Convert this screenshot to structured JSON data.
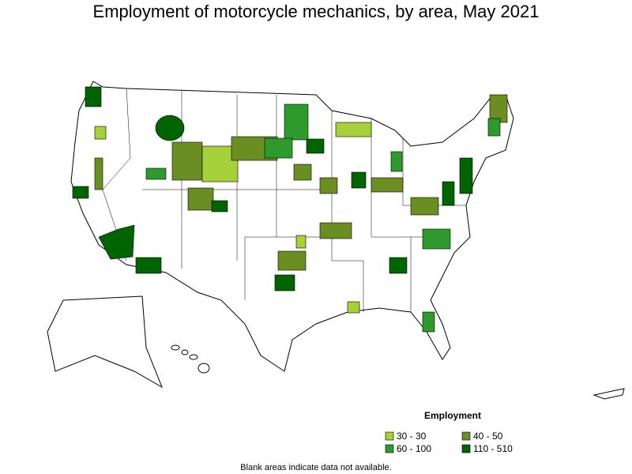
{
  "title": "Employment of motorcycle mechanics, by area, May 2021",
  "legend": {
    "title": "Employment",
    "items": [
      {
        "label": "30 - 30",
        "color": "#a6d13a"
      },
      {
        "label": "40 - 50",
        "color": "#6b8e23"
      },
      {
        "label": "60 - 100",
        "color": "#2e9a2e"
      },
      {
        "label": "110 - 510",
        "color": "#006400"
      }
    ]
  },
  "note": "Blank areas indicate data not available."
}
